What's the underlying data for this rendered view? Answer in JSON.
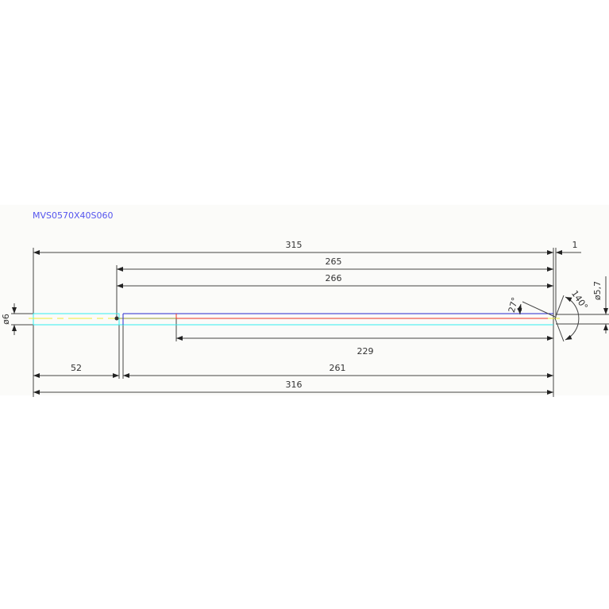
{
  "part_number": "MVS0570X40S060",
  "dimensions": {
    "overall_length_top": "315",
    "length_265": "265",
    "length_266": "266",
    "tip_offset": "1",
    "shank_diameter": "ø6",
    "tip_diameter": "ø5,7",
    "point_angle": "140°",
    "relief_angle": "27°",
    "length_229": "229",
    "shank_length": "52",
    "length_261": "261",
    "overall_length_bottom": "316"
  },
  "colors": {
    "title": "#5555ee",
    "outline": "#2a2ad0",
    "centerline": "#ee3322",
    "shank": "#33eeee",
    "axis": "#eeee33",
    "dimension": "#444444"
  }
}
